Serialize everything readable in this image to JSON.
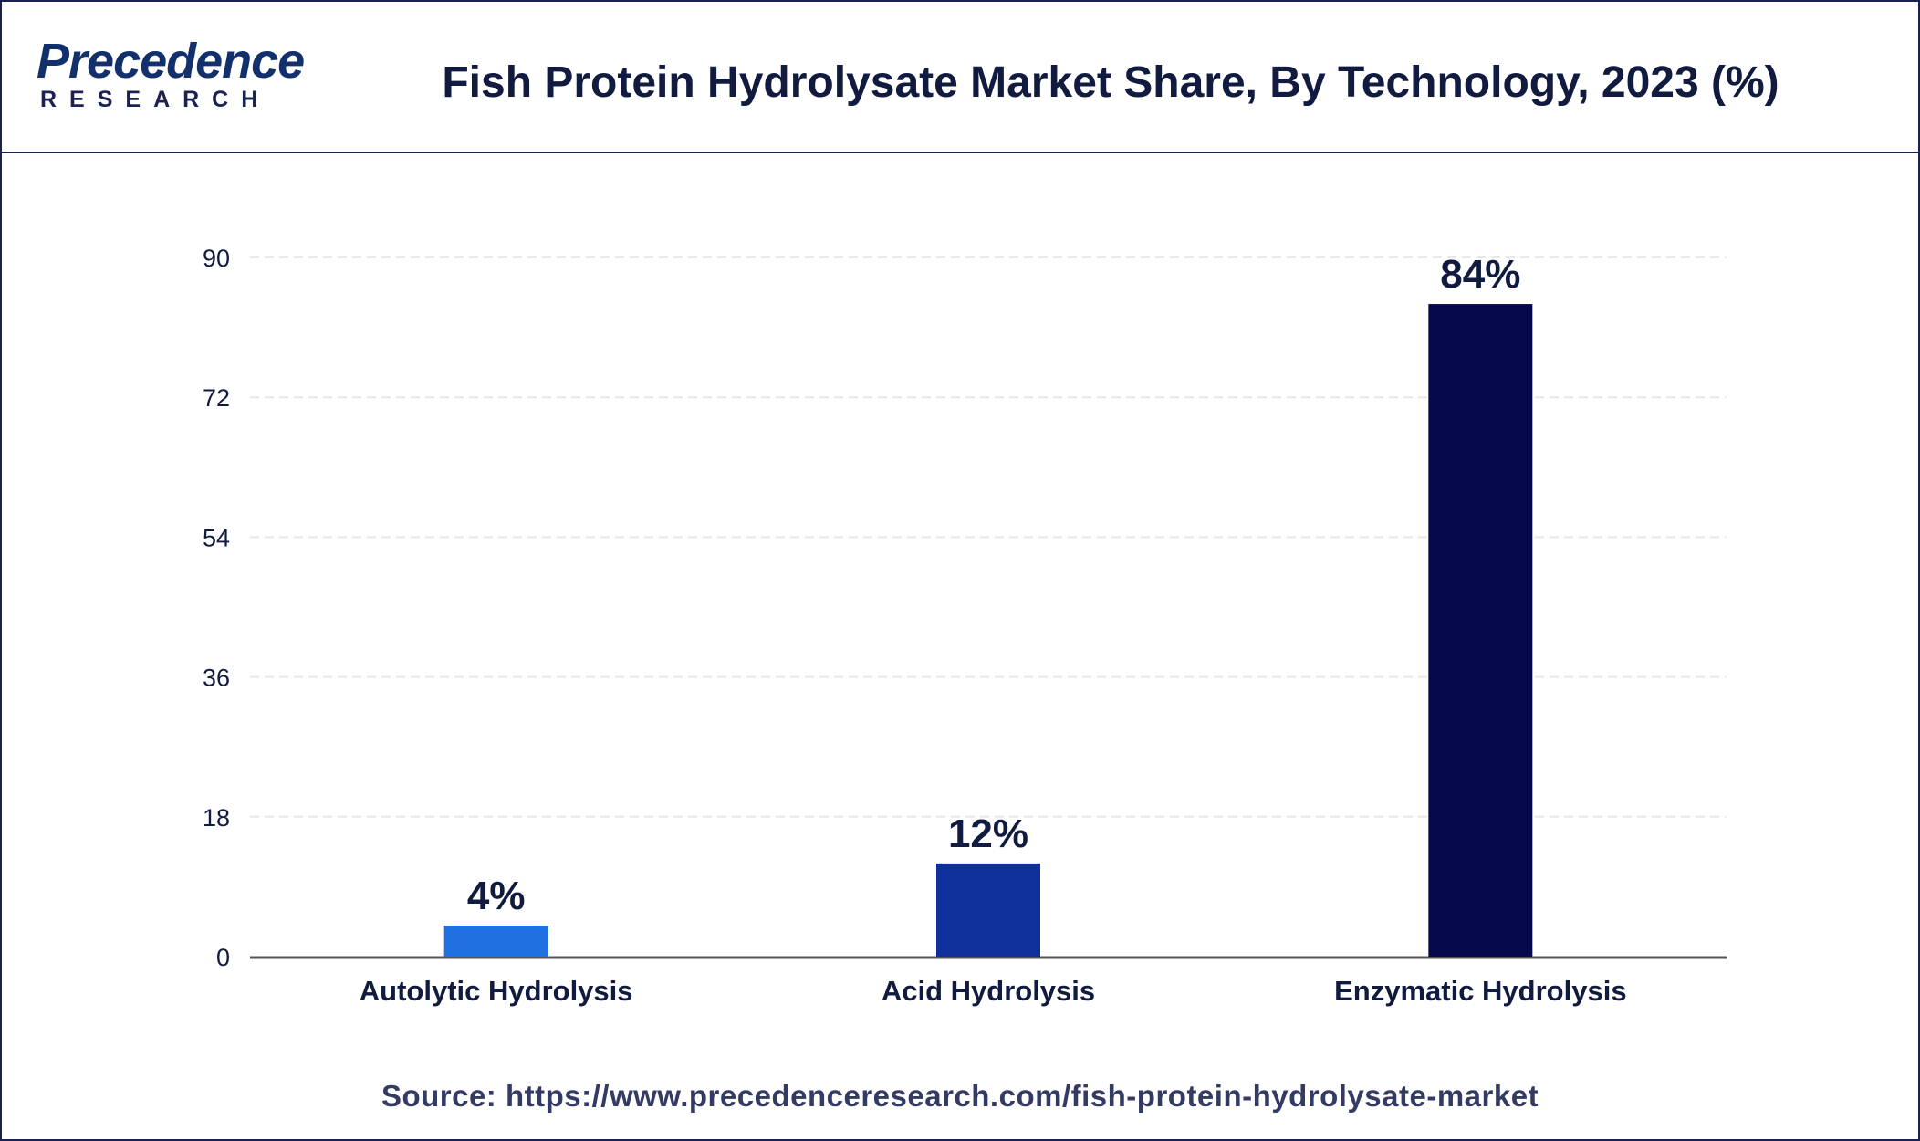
{
  "header": {
    "logo_text": "Precedence",
    "logo_subtext": "RESEARCH",
    "title": "Fish Protein Hydrolysate Market Share, By Technology, 2023 (%)"
  },
  "colors": {
    "border": "#1b2150",
    "grid": "#e8e8e8",
    "axis": "#555555",
    "label": "#111a3f"
  },
  "chart_data": {
    "type": "bar",
    "title": "Fish Protein Hydrolysate Market Share, By Technology, 2023 (%)",
    "xlabel": "",
    "ylabel": "",
    "categories": [
      "Autolytic Hydrolysis",
      "Acid Hydrolysis",
      "Enzymatic Hydrolysis"
    ],
    "values": [
      4,
      12,
      84
    ],
    "value_labels": [
      "4%",
      "12%",
      "84%"
    ],
    "bar_colors": [
      "#1f6fe0",
      "#0f2f9a",
      "#05084a"
    ],
    "ylim": [
      0,
      90
    ],
    "yticks": [
      0,
      18,
      36,
      54,
      72,
      90
    ],
    "grid": true,
    "legend": "none"
  },
  "footer": {
    "source": "Source: https://www.precedenceresearch.com/fish-protein-hydrolysate-market"
  }
}
